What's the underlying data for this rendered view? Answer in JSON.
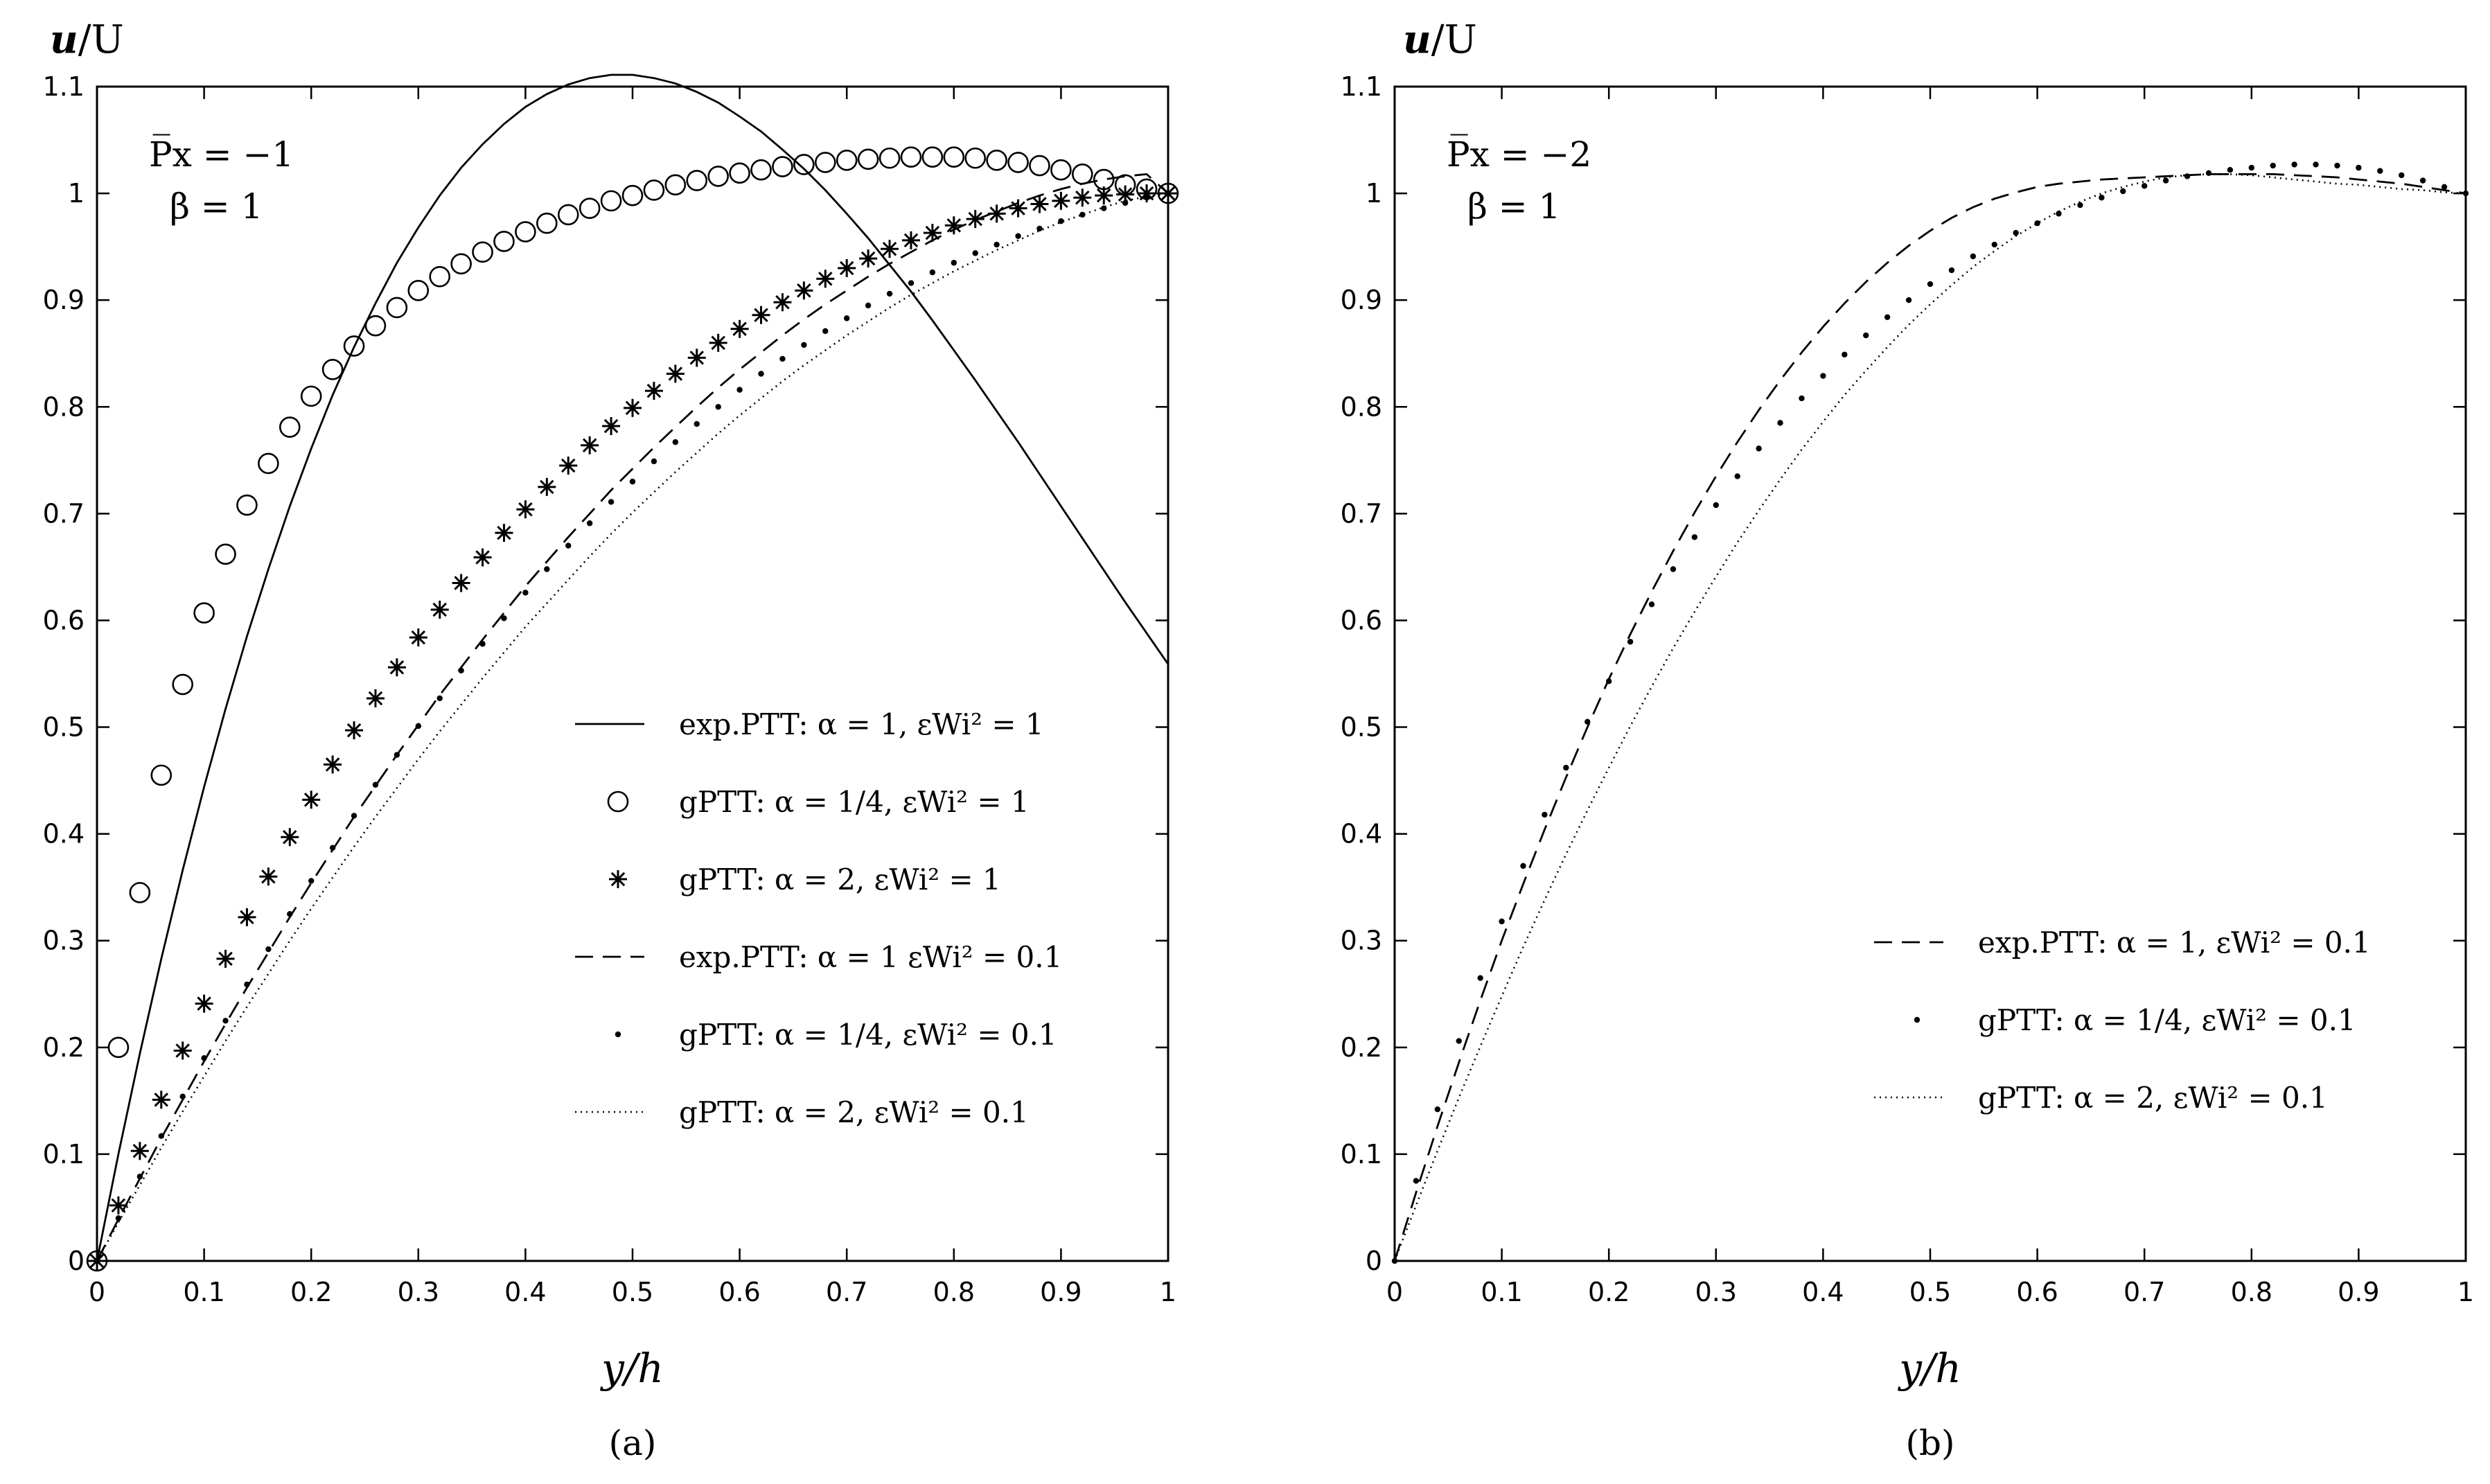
{
  "figure": {
    "colors": {
      "line": "#000000",
      "background": "#ffffff"
    }
  },
  "chart_data": [
    {
      "panel": "a",
      "type": "line",
      "caption": "(a)",
      "ylabel": "u/U",
      "xlabel": "y/h",
      "xlim": [
        0,
        1
      ],
      "ylim": [
        0,
        1.1
      ],
      "xticks": [
        "0",
        "0.1",
        "0.2",
        "0.3",
        "0.4",
        "0.5",
        "0.6",
        "0.7",
        "0.8",
        "0.9",
        "1"
      ],
      "yticks": [
        "0",
        "0.1",
        "0.2",
        "0.3",
        "0.4",
        "0.5",
        "0.6",
        "0.7",
        "0.8",
        "0.9",
        "1",
        "1.1"
      ],
      "annotations": {
        "px": "P̅x = −1",
        "beta": "β = 1"
      },
      "legend_position": "center-right",
      "x": [
        0,
        0.02,
        0.04,
        0.06,
        0.08,
        0.1,
        0.12,
        0.14,
        0.16,
        0.18,
        0.2,
        0.22,
        0.24,
        0.26,
        0.28,
        0.3,
        0.32,
        0.34,
        0.36,
        0.38,
        0.4,
        0.42,
        0.44,
        0.46,
        0.48,
        0.5,
        0.52,
        0.54,
        0.56,
        0.58,
        0.6,
        0.62,
        0.64,
        0.66,
        0.68,
        0.7,
        0.72,
        0.74,
        0.76,
        0.78,
        0.8,
        0.82,
        0.84,
        0.86,
        0.88,
        0.9,
        0.92,
        0.94,
        0.96,
        0.98,
        1.0
      ],
      "series": [
        {
          "name": "exp.PTT: α = 1, εWi² = 1",
          "style": "solid",
          "values": [
            0,
            0.1,
            0.194,
            0.283,
            0.366,
            0.444,
            0.517,
            0.585,
            0.648,
            0.707,
            0.761,
            0.811,
            0.856,
            0.897,
            0.935,
            0.968,
            0.998,
            1.024,
            1.046,
            1.065,
            1.081,
            1.093,
            1.102,
            1.108,
            1.111,
            1.111,
            1.108,
            1.103,
            1.095,
            1.085,
            1.072,
            1.058,
            1.041,
            1.023,
            1.003,
            0.981,
            0.958,
            0.933,
            0.908,
            0.881,
            0.853,
            0.825,
            0.796,
            0.767,
            0.737,
            0.707,
            0.677,
            0.647,
            0.617,
            0.588,
            0.559
          ]
        },
        {
          "name": "gPTT: α = 1/4, εWi² = 1",
          "style": "circle",
          "values": [
            0,
            0.2,
            0.345,
            0.455,
            0.54,
            0.607,
            0.662,
            0.708,
            0.747,
            0.781,
            0.81,
            0.835,
            0.857,
            0.876,
            0.893,
            0.909,
            0.922,
            0.934,
            0.945,
            0.955,
            0.964,
            0.972,
            0.98,
            0.986,
            0.993,
            0.998,
            1.003,
            1.008,
            1.012,
            1.016,
            1.019,
            1.022,
            1.025,
            1.027,
            1.029,
            1.031,
            1.032,
            1.033,
            1.034,
            1.034,
            1.034,
            1.033,
            1.031,
            1.029,
            1.026,
            1.022,
            1.018,
            1.013,
            1.008,
            1.004,
            1.0
          ]
        },
        {
          "name": "gPTT: α = 2, εWi² = 1",
          "style": "asterisk",
          "values": [
            0,
            0.052,
            0.103,
            0.151,
            0.197,
            0.241,
            0.283,
            0.322,
            0.36,
            0.397,
            0.432,
            0.465,
            0.497,
            0.527,
            0.556,
            0.584,
            0.61,
            0.635,
            0.659,
            0.682,
            0.704,
            0.725,
            0.745,
            0.764,
            0.782,
            0.799,
            0.815,
            0.831,
            0.846,
            0.86,
            0.873,
            0.886,
            0.898,
            0.909,
            0.92,
            0.93,
            0.939,
            0.948,
            0.956,
            0.963,
            0.97,
            0.976,
            0.981,
            0.986,
            0.99,
            0.993,
            0.996,
            0.998,
            0.999,
            1.0,
            1.0
          ]
        },
        {
          "name": "exp.PTT: α = 1 εWi² = 0.1",
          "style": "dashed",
          "values": [
            0,
            0.039,
            0.077,
            0.115,
            0.151,
            0.187,
            0.222,
            0.256,
            0.289,
            0.322,
            0.354,
            0.385,
            0.416,
            0.445,
            0.474,
            0.502,
            0.53,
            0.556,
            0.582,
            0.607,
            0.632,
            0.655,
            0.678,
            0.7,
            0.722,
            0.742,
            0.762,
            0.781,
            0.8,
            0.818,
            0.835,
            0.851,
            0.867,
            0.882,
            0.896,
            0.909,
            0.922,
            0.934,
            0.945,
            0.956,
            0.966,
            0.975,
            0.983,
            0.991,
            0.998,
            1.004,
            1.009,
            1.013,
            1.016,
            1.018,
            1.0
          ]
        },
        {
          "name": "gPTT: α = 1/4, εWi² = 0.1",
          "style": "dot",
          "values": [
            0,
            0.04,
            0.079,
            0.117,
            0.154,
            0.19,
            0.225,
            0.259,
            0.292,
            0.325,
            0.356,
            0.387,
            0.417,
            0.446,
            0.474,
            0.501,
            0.527,
            0.553,
            0.578,
            0.602,
            0.626,
            0.648,
            0.67,
            0.691,
            0.711,
            0.73,
            0.749,
            0.767,
            0.784,
            0.8,
            0.816,
            0.831,
            0.845,
            0.858,
            0.871,
            0.883,
            0.895,
            0.906,
            0.916,
            0.926,
            0.935,
            0.944,
            0.952,
            0.96,
            0.967,
            0.974,
            0.98,
            0.986,
            0.991,
            0.996,
            1.0
          ]
        },
        {
          "name": "gPTT: α = 2, εWi² = 0.1",
          "style": "dotted",
          "values": [
            0,
            0.036,
            0.071,
            0.106,
            0.14,
            0.173,
            0.206,
            0.238,
            0.269,
            0.3,
            0.33,
            0.359,
            0.388,
            0.416,
            0.443,
            0.47,
            0.496,
            0.521,
            0.546,
            0.57,
            0.594,
            0.616,
            0.638,
            0.66,
            0.681,
            0.701,
            0.72,
            0.739,
            0.757,
            0.775,
            0.792,
            0.808,
            0.824,
            0.839,
            0.853,
            0.867,
            0.88,
            0.893,
            0.905,
            0.916,
            0.927,
            0.937,
            0.947,
            0.956,
            0.965,
            0.973,
            0.98,
            0.987,
            0.993,
            0.997,
            1.0
          ]
        }
      ]
    },
    {
      "panel": "b",
      "type": "line",
      "caption": "(b)",
      "ylabel": "u/U",
      "xlabel": "y/h",
      "xlim": [
        0,
        1
      ],
      "ylim": [
        0,
        1.1
      ],
      "xticks": [
        "0",
        "0.1",
        "0.2",
        "0.3",
        "0.4",
        "0.5",
        "0.6",
        "0.7",
        "0.8",
        "0.9",
        "1"
      ],
      "yticks": [
        "0",
        "0.1",
        "0.2",
        "0.3",
        "0.4",
        "0.5",
        "0.6",
        "0.7",
        "0.8",
        "0.9",
        "1",
        "1.1"
      ],
      "annotations": {
        "px": "P̅x = −2",
        "beta": "β = 1"
      },
      "legend_position": "lower-right",
      "x": [
        0,
        0.02,
        0.04,
        0.06,
        0.08,
        0.1,
        0.12,
        0.14,
        0.16,
        0.18,
        0.2,
        0.22,
        0.24,
        0.26,
        0.28,
        0.3,
        0.32,
        0.34,
        0.36,
        0.38,
        0.4,
        0.42,
        0.44,
        0.46,
        0.48,
        0.5,
        0.52,
        0.54,
        0.56,
        0.58,
        0.6,
        0.62,
        0.64,
        0.66,
        0.68,
        0.7,
        0.72,
        0.74,
        0.76,
        0.78,
        0.8,
        0.82,
        0.84,
        0.86,
        0.88,
        0.9,
        0.92,
        0.94,
        0.96,
        0.98,
        1.0
      ],
      "series": [
        {
          "name": "exp.PTT: α = 1, εWi² = 0.1",
          "style": "dashed",
          "values": [
            0,
            0.064,
            0.126,
            0.186,
            0.244,
            0.3,
            0.353,
            0.404,
            0.453,
            0.5,
            0.545,
            0.587,
            0.627,
            0.665,
            0.701,
            0.735,
            0.767,
            0.797,
            0.825,
            0.851,
            0.875,
            0.897,
            0.917,
            0.935,
            0.951,
            0.965,
            0.977,
            0.987,
            0.995,
            1.001,
            1.006,
            1.009,
            1.011,
            1.013,
            1.014,
            1.015,
            1.016,
            1.017,
            1.018,
            1.018,
            1.018,
            1.018,
            1.017,
            1.016,
            1.015,
            1.013,
            1.011,
            1.009,
            1.006,
            1.003,
            1.0
          ]
        },
        {
          "name": "gPTT: α = 1/4, εWi² = 0.1",
          "style": "dot",
          "values": [
            0,
            0.075,
            0.142,
            0.206,
            0.265,
            0.318,
            0.37,
            0.418,
            0.462,
            0.505,
            0.543,
            0.58,
            0.615,
            0.648,
            0.678,
            0.708,
            0.735,
            0.761,
            0.785,
            0.808,
            0.829,
            0.849,
            0.867,
            0.884,
            0.9,
            0.915,
            0.928,
            0.941,
            0.952,
            0.963,
            0.972,
            0.981,
            0.989,
            0.996,
            1.002,
            1.007,
            1.012,
            1.016,
            1.019,
            1.022,
            1.024,
            1.026,
            1.027,
            1.027,
            1.026,
            1.024,
            1.021,
            1.017,
            1.012,
            1.006,
            1.0
          ]
        },
        {
          "name": "gPTT: α = 2, εWi² = 0.1",
          "style": "dotted",
          "values": [
            0,
            0.052,
            0.103,
            0.153,
            0.201,
            0.248,
            0.294,
            0.338,
            0.381,
            0.422,
            0.462,
            0.501,
            0.538,
            0.574,
            0.608,
            0.641,
            0.673,
            0.703,
            0.732,
            0.76,
            0.786,
            0.811,
            0.834,
            0.856,
            0.877,
            0.896,
            0.914,
            0.931,
            0.946,
            0.96,
            0.972,
            0.983,
            0.992,
            1.0,
            1.006,
            1.011,
            1.015,
            1.017,
            1.018,
            1.018,
            1.017,
            1.015,
            1.013,
            1.011,
            1.009,
            1.008,
            1.006,
            1.004,
            1.003,
            1.001,
            1.0
          ]
        }
      ]
    }
  ]
}
